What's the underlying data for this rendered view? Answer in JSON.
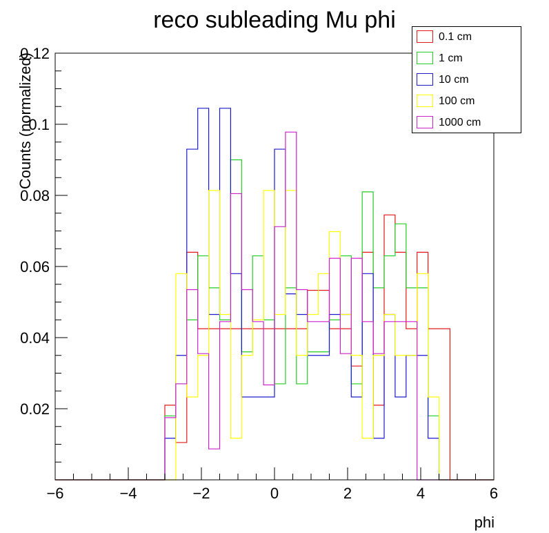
{
  "chart_data": {
    "type": "histogram",
    "title": "reco subleading Mu phi",
    "xlabel": "phi",
    "ylabel": "Counts (normalized)",
    "xlim": [
      -6,
      6
    ],
    "ylim": [
      0,
      0.12
    ],
    "x_ticks": [
      -6,
      -4,
      -2,
      0,
      2,
      4,
      6
    ],
    "x_tick_labels": [
      "−6",
      "−4",
      "−2",
      "0",
      "2",
      "4",
      "6"
    ],
    "y_ticks": [
      0.02,
      0.04,
      0.06,
      0.08,
      0.1,
      0.12
    ],
    "y_tick_labels": [
      "0.02",
      "0.04",
      "0.06",
      "0.08",
      "0.1",
      "0.12"
    ],
    "bin_edges_start": -6,
    "bin_width": 0.3,
    "legend_position": "top-right",
    "series": [
      {
        "name": "0.1 cm",
        "color": "#e01818",
        "values": [
          0,
          0,
          0,
          0,
          0,
          0,
          0,
          0,
          0,
          0,
          0.021,
          0.0105,
          0.064,
          0.0425,
          0.0425,
          0.0425,
          0.0425,
          0.0425,
          0.0425,
          0.0425,
          0.0425,
          0.0425,
          0.0425,
          0.0533,
          0.0533,
          0.0425,
          0.0425,
          0.032,
          0.064,
          0.021,
          0.0745,
          0.064,
          0.0425,
          0.064,
          0.0425,
          0.0425,
          0,
          0,
          0,
          0
        ]
      },
      {
        "name": "1 cm",
        "color": "#22cc22",
        "values": [
          0,
          0,
          0,
          0,
          0,
          0,
          0,
          0,
          0,
          0,
          0.018,
          0.027,
          0.045,
          0.063,
          0.054,
          0.045,
          0.09,
          0.036,
          0.063,
          0.045,
          0.027,
          0.054,
          0.027,
          0.036,
          0.036,
          0.045,
          0.063,
          0.027,
          0.081,
          0.054,
          0.063,
          0.072,
          0.054,
          0.054,
          0.018,
          0,
          0,
          0,
          0,
          0
        ]
      },
      {
        "name": "10 cm",
        "color": "#1a1acc",
        "values": [
          0,
          0,
          0,
          0,
          0,
          0,
          0,
          0,
          0,
          0,
          0.0117,
          0.035,
          0.093,
          0.1045,
          0.0465,
          0.1045,
          0.058,
          0.0233,
          0.0233,
          0.0233,
          0.093,
          0.0523,
          0.0465,
          0.035,
          0.035,
          0.0465,
          0.0465,
          0.0233,
          0.058,
          0.0117,
          0.0465,
          0.0233,
          0.035,
          0.035,
          0.0117,
          0,
          0,
          0,
          0,
          0
        ]
      },
      {
        "name": "100 cm",
        "color": "#ffff00",
        "values": [
          0,
          0,
          0,
          0,
          0,
          0,
          0,
          0,
          0,
          0,
          0,
          0.058,
          0.0233,
          0.035,
          0.0814,
          0.0465,
          0.0117,
          0.035,
          0.045,
          0.0814,
          0.0465,
          0.0814,
          0.035,
          0.0465,
          0.058,
          0.0698,
          0.0465,
          0.035,
          0.0117,
          0.035,
          0.0465,
          0.035,
          0.035,
          0.058,
          0.0233,
          0,
          0,
          0,
          0,
          0
        ]
      },
      {
        "name": "1000 cm",
        "color": "#cc22cc",
        "values": [
          0,
          0,
          0,
          0,
          0,
          0,
          0,
          0,
          0,
          0,
          0.0175,
          0.027,
          0.0535,
          0.0355,
          0.0087,
          0.0445,
          0.0805,
          0.0535,
          0.0445,
          0.0267,
          0.0712,
          0.0978,
          0.0535,
          0.0445,
          0.0445,
          0.0623,
          0.0355,
          0.0623,
          0.0445,
          0.0355,
          0.0445,
          0.0445,
          0.0445,
          0,
          0,
          0,
          0,
          0,
          0,
          0
        ]
      }
    ]
  }
}
